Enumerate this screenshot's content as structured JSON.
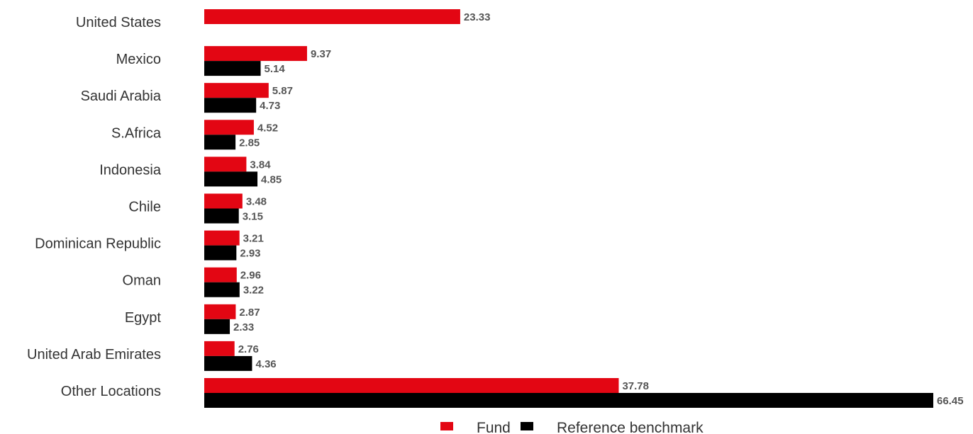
{
  "chart_data": {
    "type": "bar",
    "orientation": "horizontal",
    "categories": [
      "United States",
      "Mexico",
      "Saudi Arabia",
      "S.Africa",
      "Indonesia",
      "Chile",
      "Dominican Republic",
      "Oman",
      "Egypt",
      "United Arab Emirates",
      "Other Locations"
    ],
    "series": [
      {
        "name": "Fund",
        "color": "#e30613",
        "values": [
          23.33,
          9.37,
          5.87,
          4.52,
          3.84,
          3.48,
          3.21,
          2.96,
          2.87,
          2.76,
          37.78
        ],
        "labels": [
          "23.33",
          "9.37",
          "5.87",
          "4.52",
          "3.84",
          "3.48",
          "3.21",
          "2.96",
          "2.87",
          "2.76",
          "37.78"
        ]
      },
      {
        "name": "Reference benchmark",
        "color": "#000000",
        "values": [
          null,
          5.14,
          4.73,
          2.85,
          4.85,
          3.15,
          2.93,
          3.22,
          2.33,
          4.36,
          66.45
        ],
        "labels": [
          null,
          "5.14",
          "4.73",
          "2.85",
          "4.85",
          "3.15",
          "2.93",
          "3.22",
          "2.33",
          "4.36",
          "66.45"
        ]
      }
    ],
    "xlim": [
      0,
      66.45
    ],
    "grid": false,
    "legend_position": "bottom-center"
  }
}
